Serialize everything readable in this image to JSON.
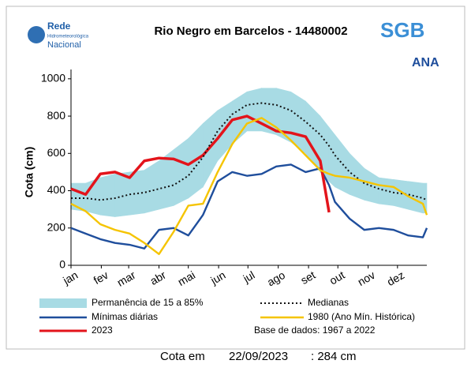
{
  "logos": {
    "left": [
      "Rede",
      "Hidrometeorológica",
      "Nacional"
    ],
    "sgb": "SGB",
    "ana": "ANA"
  },
  "chart_data": {
    "type": "line",
    "title": "Rio Negro em Barcelos - 14480002",
    "y_label": "Cota (cm)",
    "x": [
      1,
      16,
      31,
      46,
      61,
      76,
      91,
      106,
      121,
      136,
      151,
      166,
      181,
      196,
      211,
      226,
      241,
      256,
      265,
      271,
      286,
      301,
      316,
      331,
      346,
      361,
      365
    ],
    "xlim": [
      1,
      365
    ],
    "xticks": [
      {
        "value": 1,
        "label": "jan"
      },
      {
        "value": 32,
        "label": "fev"
      },
      {
        "value": 60,
        "label": "mar"
      },
      {
        "value": 91,
        "label": "abr"
      },
      {
        "value": 121,
        "label": "mai"
      },
      {
        "value": 152,
        "label": "jun"
      },
      {
        "value": 182,
        "label": "jul"
      },
      {
        "value": 213,
        "label": "ago"
      },
      {
        "value": 244,
        "label": "set"
      },
      {
        "value": 274,
        "label": "out"
      },
      {
        "value": 305,
        "label": "nov"
      },
      {
        "value": 335,
        "label": "dez"
      }
    ],
    "ylim": [
      0,
      1050
    ],
    "yticks": [
      0,
      200,
      400,
      600,
      800,
      1000
    ],
    "band": {
      "name": "Permanência de 15 a 85%",
      "color": "#a8dbe4",
      "upper": [
        440,
        440,
        470,
        490,
        500,
        510,
        560,
        620,
        680,
        760,
        830,
        880,
        930,
        950,
        950,
        930,
        880,
        800,
        740,
        700,
        600,
        520,
        470,
        460,
        450,
        440,
        440
      ],
      "lower": [
        300,
        290,
        270,
        260,
        270,
        280,
        300,
        320,
        360,
        420,
        560,
        650,
        720,
        720,
        700,
        660,
        600,
        500,
        450,
        420,
        380,
        350,
        330,
        320,
        300,
        280,
        280
      ]
    },
    "series": [
      {
        "name": "Mínimas diárias",
        "color": "#1f4e9c",
        "dash": false,
        "values": [
          200,
          170,
          140,
          120,
          110,
          90,
          190,
          200,
          160,
          270,
          450,
          500,
          480,
          490,
          530,
          540,
          500,
          520,
          430,
          340,
          250,
          190,
          200,
          190,
          160,
          150,
          200
        ]
      },
      {
        "name": "2023",
        "color": "#e3141b",
        "dash": false,
        "values": [
          410,
          380,
          490,
          500,
          470,
          560,
          575,
          570,
          540,
          590,
          680,
          780,
          800,
          760,
          720,
          710,
          690,
          560,
          284,
          null,
          null,
          null,
          null,
          null,
          null,
          null,
          null
        ]
      },
      {
        "name": "Medianas",
        "color": "#111111",
        "dash": true,
        "values": [
          360,
          360,
          350,
          360,
          380,
          390,
          410,
          430,
          480,
          580,
          720,
          810,
          860,
          870,
          860,
          830,
          770,
          700,
          640,
          590,
          500,
          440,
          410,
          390,
          380,
          360,
          350
        ]
      },
      {
        "name": "1980 (Ano Mín. Histórica)",
        "color": "#f5c400",
        "dash": false,
        "values": [
          330,
          290,
          220,
          190,
          170,
          120,
          60,
          180,
          320,
          330,
          500,
          650,
          760,
          790,
          740,
          670,
          590,
          510,
          490,
          480,
          470,
          450,
          430,
          420,
          370,
          330,
          270
        ]
      }
    ],
    "note": "Base de dados: 1967 a 2022",
    "footer": {
      "label": "Cota em",
      "date": "22/09/2023",
      "value": ": 284 cm"
    }
  }
}
